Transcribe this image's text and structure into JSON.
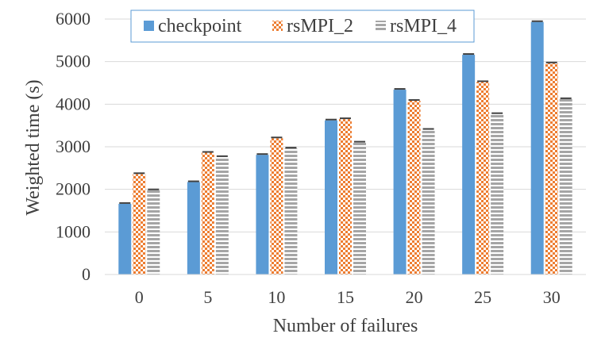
{
  "chart_data": {
    "type": "bar",
    "categories": [
      "0",
      "5",
      "10",
      "15",
      "20",
      "25",
      "30"
    ],
    "series": [
      {
        "name": "checkpoint",
        "values": [
          1660,
          2170,
          2810,
          3620,
          4340,
          5160,
          5930
        ],
        "color": "#5b9bd5",
        "pattern": "solid"
      },
      {
        "name": "rsMPI_2",
        "values": [
          2360,
          2860,
          3200,
          3650,
          4080,
          4520,
          4960
        ],
        "color": "#ed7d31",
        "pattern": "checker"
      },
      {
        "name": "rsMPI_4",
        "values": [
          1980,
          2760,
          2960,
          3100,
          3400,
          3770,
          4120
        ],
        "color": "#a5a5a5",
        "pattern": "horizontal-stripes"
      }
    ],
    "error_bars": true,
    "xlabel": "Number of failures",
    "ylabel": "Weighted time (s)",
    "ylim": [
      0,
      6000
    ],
    "yticks": [
      0,
      1000,
      2000,
      3000,
      4000,
      5000,
      6000
    ],
    "grid": "horizontal",
    "legend_placement": "top"
  }
}
